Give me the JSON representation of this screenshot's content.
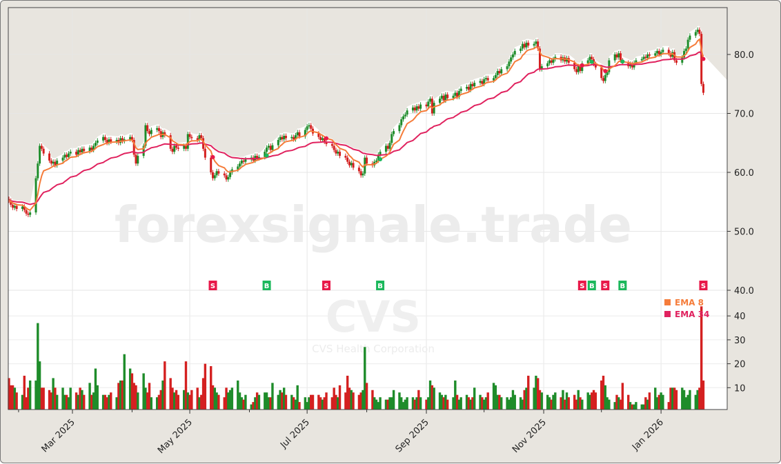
{
  "watermark": {
    "site": "forexsignale.trade",
    "ticker": "CVS",
    "company": "CVS Health Corporation"
  },
  "legend": [
    {
      "label": "EMA 8",
      "color": "#f57c3a"
    },
    {
      "label": "EMA 34",
      "color": "#e0215e"
    }
  ],
  "colors": {
    "up": "#1e8c2a",
    "down": "#d42020",
    "buy": "#1cb85c",
    "sell": "#e8194a",
    "shade": "#e8e5df"
  },
  "chart_data": {
    "type": "candlestick",
    "price_axis": {
      "ticks": [
        "40.0",
        "50.0",
        "60.0",
        "70.0",
        "80.0"
      ],
      "range": [
        40,
        87
      ]
    },
    "volume_axis": {
      "ticks": [
        "10",
        "20",
        "30",
        "40"
      ],
      "unit": "millions"
    },
    "x_ticks": [
      "Mar 2025",
      "May 2025",
      "Jul 2025",
      "Sep 2025",
      "Nov 2025",
      "Jan 2026"
    ],
    "grid": true,
    "legend_position": "right",
    "weeks": [
      {
        "start": "2025-01-27",
        "close": [
          55.2,
          54.5,
          54.0,
          54.3,
          53.8
        ],
        "volume": [
          14,
          11,
          11,
          10,
          8
        ]
      },
      {
        "start": "2025-02-03",
        "close": [
          54.2,
          53.6,
          53.0,
          52.8,
          53.2
        ],
        "volume": [
          7,
          15,
          6,
          10,
          13
        ]
      },
      {
        "start": "2025-02-10",
        "close": [
          59.0,
          61.5,
          64.5,
          64.0,
          63.2
        ],
        "volume": [
          13,
          37,
          21,
          10,
          10
        ]
      },
      {
        "start": "2025-02-17",
        "close": [
          62.0,
          61.5,
          61.8,
          61.2,
          62.0
        ],
        "volume": [
          9,
          8,
          14,
          10,
          7
        ]
      },
      {
        "start": "2025-02-24",
        "close": [
          62.5,
          63.0,
          62.6,
          63.2,
          63.5
        ],
        "volume": [
          10,
          7,
          7,
          6,
          10
        ]
      },
      {
        "start": "2025-03-03",
        "close": [
          63.0,
          63.8,
          63.4,
          64.0,
          63.6
        ],
        "volume": [
          8,
          7,
          10,
          9,
          7
        ]
      },
      {
        "start": "2025-03-10",
        "close": [
          64.2,
          63.8,
          64.5,
          65.0,
          65.4
        ],
        "volume": [
          12,
          7,
          8,
          18,
          11
        ]
      },
      {
        "start": "2025-03-17",
        "close": [
          66.0,
          65.5,
          65.0,
          65.6,
          65.2
        ],
        "volume": [
          7,
          7,
          6,
          7,
          8
        ]
      },
      {
        "start": "2025-03-24",
        "close": [
          65.5,
          65.0,
          65.8,
          65.3,
          65.6
        ],
        "volume": [
          6,
          12,
          13,
          13,
          24
        ]
      },
      {
        "start": "2025-03-31",
        "close": [
          66.0,
          65.5,
          63.0,
          61.5,
          62.8
        ],
        "volume": [
          18,
          16,
          12,
          11,
          8
        ]
      },
      {
        "start": "2025-04-07",
        "close": [
          64.5,
          68.0,
          67.0,
          66.5,
          67.2
        ],
        "volume": [
          16,
          10,
          8,
          12,
          6
        ]
      },
      {
        "start": "2025-04-14",
        "close": [
          67.5,
          67.0,
          66.0,
          66.8,
          66.3
        ],
        "volume": [
          6,
          7,
          9,
          13,
          21
        ]
      },
      {
        "start": "2025-04-21",
        "close": [
          64.0,
          63.5,
          64.5,
          64.2,
          64.0
        ],
        "volume": [
          14,
          10,
          8,
          9,
          7
        ]
      },
      {
        "start": "2025-04-28",
        "close": [
          64.5,
          64.0,
          66.5,
          66.0,
          65.8
        ],
        "volume": [
          9,
          21,
          8,
          7,
          9
        ]
      },
      {
        "start": "2025-05-05",
        "close": [
          65.5,
          66.3,
          65.8,
          64.0,
          62.5
        ],
        "volume": [
          10,
          6,
          7,
          14,
          20
        ]
      },
      {
        "start": "2025-05-12",
        "close": [
          60.0,
          59.0,
          59.5,
          60.2,
          59.8
        ],
        "volume": [
          19,
          11,
          10,
          8,
          7
        ]
      },
      {
        "start": "2025-05-19",
        "close": [
          59.5,
          58.8,
          59.2,
          60.0,
          60.5
        ],
        "volume": [
          6,
          10,
          8,
          9,
          10
        ]
      },
      {
        "start": "2025-05-26",
        "close": [
          61.0,
          61.5,
          62.0,
          61.8,
          62.2
        ],
        "volume": [
          13,
          8,
          6,
          5,
          7
        ]
      },
      {
        "start": "2025-06-02",
        "close": [
          62.5,
          62.0,
          62.8,
          62.4,
          62.6
        ],
        "volume": [
          3,
          4,
          6,
          8,
          7
        ]
      },
      {
        "start": "2025-06-09",
        "close": [
          63.5,
          64.2,
          64.5,
          63.8,
          64.6
        ],
        "volume": [
          8,
          8,
          6,
          6,
          12
        ]
      },
      {
        "start": "2025-06-16",
        "close": [
          65.5,
          66.0,
          65.6,
          66.2,
          65.8
        ],
        "volume": [
          7,
          9,
          8,
          10,
          7
        ]
      },
      {
        "start": "2025-06-23",
        "close": [
          66.0,
          65.6,
          66.3,
          66.8,
          66.1
        ],
        "volume": [
          7,
          6,
          5,
          11,
          4
        ]
      },
      {
        "start": "2025-06-30",
        "close": [
          67.2,
          67.8,
          68.0,
          67.4,
          66.6
        ],
        "volume": [
          6,
          4,
          6,
          7,
          7
        ]
      },
      {
        "start": "2025-07-07",
        "close": [
          66.0,
          65.5,
          65.8,
          65.2,
          64.8
        ],
        "volume": [
          7,
          6,
          5,
          6,
          8
        ]
      },
      {
        "start": "2025-07-14",
        "close": [
          64.5,
          63.8,
          63.2,
          63.5,
          62.8
        ],
        "volume": [
          6,
          10,
          7,
          6,
          11
        ]
      },
      {
        "start": "2025-07-21",
        "close": [
          62.5,
          61.8,
          61.2,
          61.6,
          60.8
        ],
        "volume": [
          8,
          15,
          10,
          9,
          8
        ]
      },
      {
        "start": "2025-07-28",
        "close": [
          60.2,
          59.5,
          59.8,
          62.5,
          61.5
        ],
        "volume": [
          7,
          8,
          9,
          27,
          12
        ]
      },
      {
        "start": "2025-08-04",
        "close": [
          61.2,
          61.8,
          62.0,
          63.0,
          63.5
        ],
        "volume": [
          9,
          6,
          5,
          4,
          6
        ]
      },
      {
        "start": "2025-08-11",
        "close": [
          64.5,
          64.0,
          65.0,
          66.5,
          67.0
        ],
        "volume": [
          5,
          5,
          6,
          6,
          9
        ]
      },
      {
        "start": "2025-08-18",
        "close": [
          68.0,
          69.0,
          69.5,
          69.8,
          70.5
        ],
        "volume": [
          8,
          6,
          4,
          5,
          6
        ]
      },
      {
        "start": "2025-08-25",
        "close": [
          71.0,
          70.5,
          71.2,
          70.8,
          71.5
        ],
        "volume": [
          6,
          5,
          6,
          9,
          6
        ]
      },
      {
        "start": "2025-09-01",
        "close": [
          71.2,
          72.0,
          72.5,
          70.0,
          71.8
        ],
        "volume": [
          5,
          6,
          13,
          11,
          10
        ]
      },
      {
        "start": "2025-09-08",
        "close": [
          72.5,
          73.0,
          72.2,
          73.2,
          72.6
        ],
        "volume": [
          8,
          7,
          6,
          7,
          5
        ]
      },
      {
        "start": "2025-09-15",
        "close": [
          73.0,
          73.5,
          72.8,
          73.8,
          74.2
        ],
        "volume": [
          6,
          13,
          7,
          5,
          6
        ]
      },
      {
        "start": "2025-09-22",
        "close": [
          74.5,
          74.0,
          75.0,
          74.6,
          75.2
        ],
        "volume": [
          7,
          6,
          5,
          6,
          10
        ]
      },
      {
        "start": "2025-09-29",
        "close": [
          75.5,
          75.0,
          75.8,
          76.0,
          75.6
        ],
        "volume": [
          7,
          6,
          5,
          6,
          8
        ]
      },
      {
        "start": "2025-10-06",
        "close": [
          76.0,
          76.5,
          77.2,
          76.8,
          77.5
        ],
        "volume": [
          12,
          11,
          7,
          7,
          6
        ]
      },
      {
        "start": "2025-10-13",
        "close": [
          78.0,
          78.8,
          79.5,
          80.0,
          80.6
        ],
        "volume": [
          6,
          5,
          6,
          9,
          7
        ]
      },
      {
        "start": "2025-10-20",
        "close": [
          81.0,
          81.8,
          81.2,
          82.0,
          81.5
        ],
        "volume": [
          6,
          5,
          9,
          10,
          15
        ]
      },
      {
        "start": "2025-10-27",
        "close": [
          81.8,
          82.2,
          81.0,
          77.5,
          78.0
        ],
        "volume": [
          10,
          15,
          14,
          9,
          8
        ]
      },
      {
        "start": "2025-11-03",
        "close": [
          78.5,
          79.0,
          78.6,
          79.2,
          79.6
        ],
        "volume": [
          7,
          6,
          5,
          7,
          8
        ]
      },
      {
        "start": "2025-11-10",
        "close": [
          79.0,
          79.5,
          78.8,
          79.4,
          78.6
        ],
        "volume": [
          6,
          9,
          5,
          8,
          6
        ]
      },
      {
        "start": "2025-11-17",
        "close": [
          77.5,
          77.0,
          78.0,
          77.2,
          78.5
        ],
        "volume": [
          7,
          5,
          9,
          6,
          5
        ]
      },
      {
        "start": "2025-11-24",
        "close": [
          79.0,
          79.6,
          79.2,
          78.4,
          77.8
        ],
        "volume": [
          8,
          7,
          8,
          9,
          8
        ]
      },
      {
        "start": "2025-12-01",
        "close": [
          76.0,
          75.5,
          76.5,
          77.0,
          79.0
        ],
        "volume": [
          13,
          15,
          11,
          6,
          5
        ]
      },
      {
        "start": "2025-12-08",
        "close": [
          80.0,
          79.5,
          80.2,
          79.0,
          78.6
        ],
        "volume": [
          4,
          7,
          6,
          5,
          12
        ]
      },
      {
        "start": "2025-12-15",
        "close": [
          78.0,
          78.4,
          77.8,
          78.6,
          79.0
        ],
        "volume": [
          7,
          4,
          3,
          3,
          4
        ]
      },
      {
        "start": "2025-12-22",
        "close": [
          79.2,
          79.6,
          79.4,
          80.0,
          79.8
        ],
        "volume": [
          3,
          3,
          6,
          5,
          8
        ]
      },
      {
        "start": "2025-12-29",
        "close": [
          80.2,
          80.6,
          80.0,
          80.4,
          80.8
        ],
        "volume": [
          10,
          6,
          7,
          8,
          7
        ]
      },
      {
        "start": "2026-01-05",
        "close": [
          80.2,
          79.6,
          80.4,
          79.0,
          78.6
        ],
        "volume": [
          4,
          10,
          10,
          10,
          9
        ]
      },
      {
        "start": "2026-01-12",
        "close": [
          79.5,
          80.6,
          81.0,
          82.5,
          83.2
        ],
        "volume": [
          10,
          9,
          6,
          7,
          9
        ]
      },
      {
        "start": "2026-01-19",
        "close": [
          83.8,
          84.2,
          83.5,
          75.0,
          73.5
        ],
        "volume": [
          7,
          9,
          10,
          44,
          13
        ]
      }
    ],
    "indicators": [
      {
        "name": "EMA 8",
        "period": 8
      },
      {
        "name": "EMA 34",
        "period": 34
      }
    ],
    "signals": [
      {
        "date": "2025-05-13",
        "type": "S"
      },
      {
        "date": "2025-06-10",
        "type": "B"
      },
      {
        "date": "2025-07-11",
        "type": "S"
      },
      {
        "date": "2025-08-08",
        "type": "B"
      },
      {
        "date": "2025-11-21",
        "type": "S"
      },
      {
        "date": "2025-11-26",
        "type": "B"
      },
      {
        "date": "2025-12-03",
        "type": "S"
      },
      {
        "date": "2025-12-12",
        "type": "B"
      },
      {
        "date": "2026-01-23",
        "type": "S"
      }
    ]
  }
}
